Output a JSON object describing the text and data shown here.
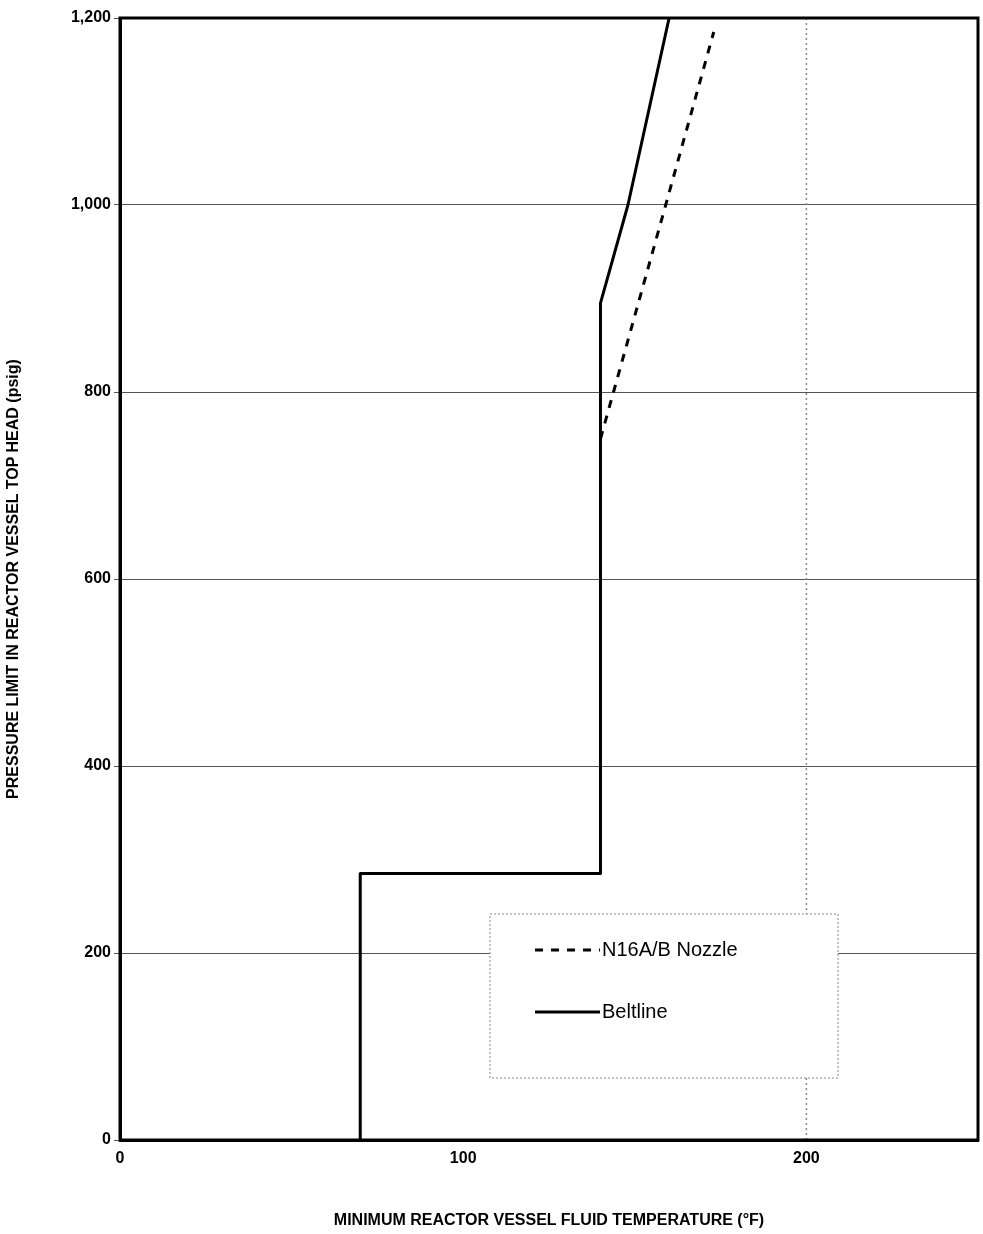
{
  "chart_data": {
    "type": "line",
    "xlabel": "MINIMUM REACTOR VESSEL FLUID TEMPERATURE (°F)",
    "ylabel": "PRESSURE LIMIT IN REACTOR VESSEL TOP HEAD (psig)",
    "xlim": [
      0,
      250
    ],
    "xticks": [
      0,
      100,
      200
    ],
    "ylim": [
      0,
      1200
    ],
    "yticks": [
      0,
      200,
      400,
      600,
      800,
      {
        "value": 1000,
        "label": "1,000"
      },
      {
        "value": 1200,
        "label": "1,200"
      }
    ],
    "grid": "y",
    "legend": "bottom right",
    "marker": "none",
    "ref_lines": [
      {
        "axis": "x",
        "value": 200,
        "line_style": "dotted",
        "color": "#888888"
      }
    ],
    "series": [
      {
        "name": "N16A/B Nozzle",
        "color": "#000000",
        "line_style": "dashed",
        "x": [
          140,
          159,
          173
        ],
        "values": [
          750,
          1000,
          1185
        ]
      },
      {
        "name": "Beltline",
        "color": "#000000",
        "line_style": "solid",
        "x": [
          70,
          70,
          140,
          140,
          148,
          160
        ],
        "values": [
          0,
          285,
          285,
          895,
          1000,
          1200
        ]
      }
    ]
  }
}
